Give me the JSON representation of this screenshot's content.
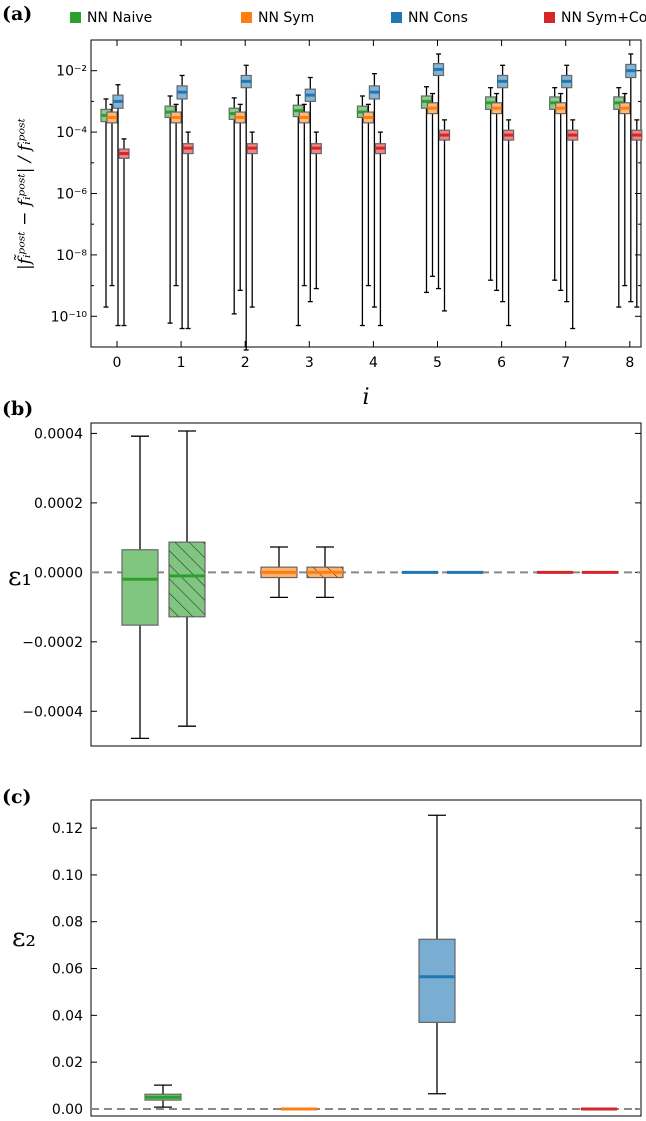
{
  "legend": {
    "placement": "top",
    "entries": [
      {
        "label": "NN Naive",
        "color": "#2ca02c"
      },
      {
        "label": "NN Sym",
        "color": "#ff7f0e"
      },
      {
        "label": "NN Cons",
        "color": "#1f77b4"
      },
      {
        "label": "NN Sym+Cons",
        "color": "#d62728"
      }
    ]
  },
  "panels": [
    {
      "label": "(a)",
      "xlabel": "i",
      "ylabel": "|f̃ᵢᵖᵒˢᵗ − fᵢᵖᵒˢᵗ| / fᵢᵖᵒˢᵗ"
    },
    {
      "label": "(b)",
      "ylabel": "ε₁"
    },
    {
      "label": "(c)",
      "ylabel": "ε₂"
    }
  ],
  "chart_data": [
    {
      "type": "box",
      "panel": "(a)",
      "yscale": "log",
      "ylim": [
        1e-11,
        0.1
      ],
      "x_ticks": [
        "0",
        "1",
        "2",
        "3",
        "4",
        "5",
        "6",
        "7",
        "8"
      ],
      "y_ticks": [
        {
          "value": 1e-10,
          "label": "10⁻¹⁰"
        },
        {
          "value": 1e-08,
          "label": "10⁻⁸"
        },
        {
          "value": 1e-06,
          "label": "10⁻⁶"
        },
        {
          "value": 0.0001,
          "label": "10⁻⁴"
        },
        {
          "value": 0.01,
          "label": "10⁻²"
        }
      ],
      "series": [
        {
          "name": "NN Naive",
          "color": "#2ca02c",
          "median": [
            0.00035,
            0.00045,
            0.0004,
            0.0005,
            0.00045,
            0.001,
            0.0009,
            0.0009,
            0.0009
          ],
          "q1": [
            0.00022,
            0.0003,
            0.00026,
            0.00032,
            0.0003,
            0.0006,
            0.00055,
            0.00055,
            0.00055
          ],
          "q3": [
            0.00055,
            0.0007,
            0.0006,
            0.00075,
            0.0007,
            0.0015,
            0.0014,
            0.0014,
            0.0014
          ],
          "whislo": [
            2e-10,
            6e-11,
            1.2e-10,
            5e-11,
            5e-11,
            6e-10,
            1.5e-09,
            1.5e-09,
            2e-10
          ],
          "whishi": [
            0.0012,
            0.0015,
            0.0013,
            0.0016,
            0.0015,
            0.003,
            0.0028,
            0.0028,
            0.0028
          ]
        },
        {
          "name": "NN Sym",
          "color": "#ff7f0e",
          "median": [
            0.0003,
            0.0003,
            0.0003,
            0.0003,
            0.0003,
            0.0006,
            0.0006,
            0.0006,
            0.0006
          ],
          "q1": [
            0.0002,
            0.0002,
            0.0002,
            0.0002,
            0.0002,
            0.0004,
            0.0004,
            0.0004,
            0.0004
          ],
          "q3": [
            0.00045,
            0.00045,
            0.00045,
            0.00045,
            0.00045,
            0.0009,
            0.0009,
            0.0009,
            0.0009
          ],
          "whislo": [
            1e-09,
            1e-09,
            7e-10,
            1e-09,
            1e-09,
            2e-09,
            7e-10,
            7e-10,
            1e-09
          ],
          "whishi": [
            0.0008,
            0.0008,
            0.0008,
            0.0008,
            0.0008,
            0.0018,
            0.0018,
            0.0018,
            0.0018
          ]
        },
        {
          "name": "NN Cons",
          "color": "#1f77b4",
          "median": [
            0.001,
            0.002,
            0.0045,
            0.0016,
            0.002,
            0.011,
            0.0045,
            0.0045,
            0.01
          ],
          "q1": [
            0.0006,
            0.0012,
            0.0028,
            0.001,
            0.0012,
            0.007,
            0.0028,
            0.0028,
            0.006
          ],
          "q3": [
            0.0016,
            0.0032,
            0.007,
            0.0025,
            0.0032,
            0.017,
            0.007,
            0.007,
            0.016
          ],
          "whislo": [
            5e-11,
            4e-11,
            8e-12,
            3e-10,
            2e-10,
            8e-10,
            3e-10,
            3e-10,
            3e-10
          ],
          "whishi": [
            0.0035,
            0.007,
            0.015,
            0.006,
            0.008,
            0.035,
            0.015,
            0.015,
            0.035
          ]
        },
        {
          "name": "NN Sym+Cons",
          "color": "#d62728",
          "median": [
            2e-05,
            3e-05,
            3e-05,
            3e-05,
            3e-05,
            8e-05,
            8e-05,
            8e-05,
            8e-05
          ],
          "q1": [
            1.4e-05,
            2e-05,
            2e-05,
            2e-05,
            2e-05,
            5.5e-05,
            5.5e-05,
            5.5e-05,
            5.5e-05
          ],
          "q3": [
            2.8e-05,
            4.2e-05,
            4.2e-05,
            4.2e-05,
            4.2e-05,
            0.000115,
            0.000115,
            0.000115,
            0.000115
          ],
          "whislo": [
            5e-11,
            4e-11,
            2e-10,
            8e-10,
            5e-11,
            1.5e-10,
            5e-11,
            4e-11,
            2e-10
          ],
          "whishi": [
            6e-05,
            0.0001,
            0.0001,
            0.0001,
            0.0001,
            0.00025,
            0.00025,
            0.00025,
            0.00025
          ]
        }
      ]
    },
    {
      "type": "box",
      "panel": "(b)",
      "ylim": [
        -0.0005,
        0.00043
      ],
      "y_ticks": [
        {
          "value": -0.0004,
          "label": "−0.0004"
        },
        {
          "value": -0.0002,
          "label": "−0.0002"
        },
        {
          "value": 0.0,
          "label": "0.0000"
        },
        {
          "value": 0.0002,
          "label": "0.0002"
        },
        {
          "value": 0.0004,
          "label": "0.0004"
        }
      ],
      "zero_line": true,
      "boxes": [
        {
          "series": "NN Naive",
          "color": "#2ca02c",
          "hatched": false,
          "median": -2e-05,
          "q1": -0.000152,
          "q3": 6.5e-05,
          "whislo": -0.000478,
          "whishi": 0.000392
        },
        {
          "series": "NN Naive",
          "color": "#2ca02c",
          "hatched": true,
          "median": -1e-05,
          "q1": -0.000128,
          "q3": 8.7e-05,
          "whislo": -0.000443,
          "whishi": 0.000407
        },
        {
          "series": "NN Sym",
          "color": "#ff7f0e",
          "hatched": false,
          "median": 0.0,
          "q1": -1.5e-05,
          "q3": 1.5e-05,
          "whislo": -7.2e-05,
          "whishi": 7.3e-05
        },
        {
          "series": "NN Sym",
          "color": "#ff7f0e",
          "hatched": true,
          "median": 0.0,
          "q1": -1.5e-05,
          "q3": 1.5e-05,
          "whislo": -7.2e-05,
          "whishi": 7.3e-05
        },
        {
          "series": "NN Cons",
          "color": "#1f77b4",
          "hatched": false,
          "median": 0.0,
          "q1": 0.0,
          "q3": 0.0,
          "whislo": 0.0,
          "whishi": 0.0
        },
        {
          "series": "NN Cons",
          "color": "#1f77b4",
          "hatched": true,
          "median": 0.0,
          "q1": 0.0,
          "q3": 0.0,
          "whislo": 0.0,
          "whishi": 0.0
        },
        {
          "series": "NN Sym+Cons",
          "color": "#d62728",
          "hatched": false,
          "median": 0.0,
          "q1": 0.0,
          "q3": 0.0,
          "whislo": 0.0,
          "whishi": 0.0
        },
        {
          "series": "NN Sym+Cons",
          "color": "#d62728",
          "hatched": true,
          "median": 0.0,
          "q1": 0.0,
          "q3": 0.0,
          "whislo": 0.0,
          "whishi": 0.0
        }
      ]
    },
    {
      "type": "box",
      "panel": "(c)",
      "ylim": [
        -0.003,
        0.132
      ],
      "y_ticks": [
        {
          "value": 0.0,
          "label": "0.00"
        },
        {
          "value": 0.02,
          "label": "0.02"
        },
        {
          "value": 0.04,
          "label": "0.04"
        },
        {
          "value": 0.06,
          "label": "0.06"
        },
        {
          "value": 0.08,
          "label": "0.08"
        },
        {
          "value": 0.1,
          "label": "0.10"
        },
        {
          "value": 0.12,
          "label": "0.12"
        }
      ],
      "zero_line": true,
      "boxes": [
        {
          "series": "NN Naive",
          "color": "#2ca02c",
          "median": 0.005,
          "q1": 0.0038,
          "q3": 0.0063,
          "whislo": 0.0008,
          "whishi": 0.0102
        },
        {
          "series": "NN Sym",
          "color": "#ff7f0e",
          "median": 0.0,
          "q1": 0.0,
          "q3": 0.0,
          "whislo": 0.0,
          "whishi": 0.0
        },
        {
          "series": "NN Cons",
          "color": "#1f77b4",
          "median": 0.0565,
          "q1": 0.037,
          "q3": 0.0725,
          "whislo": 0.0065,
          "whishi": 0.1255
        },
        {
          "series": "NN Sym+Cons",
          "color": "#d62728",
          "median": 0.0,
          "q1": 0.0,
          "q3": 0.0,
          "whislo": 0.0,
          "whishi": 0.0
        }
      ]
    }
  ]
}
